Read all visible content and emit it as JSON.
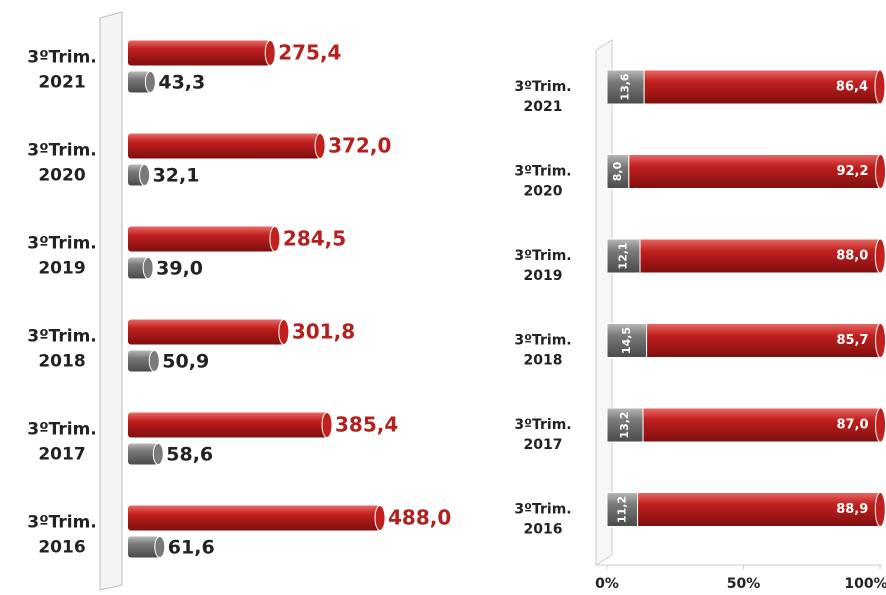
{
  "chart_data": [
    {
      "type": "cylinder-bar",
      "categories": [
        "3ºTrim.\n2021",
        "3ºTrim.\n2020",
        "3ºTrim.\n2019",
        "3ºTrim.\n2018",
        "3ºTrim.\n2017",
        "3ºTrim.\n2016"
      ],
      "series": [
        {
          "color": "#c0201e",
          "label_color": "#b3201d",
          "values": [
            275.4,
            372.0,
            284.5,
            301.8,
            385.4,
            488.0
          ],
          "value_labels": [
            "275,4",
            "372,0",
            "284,5",
            "301,8",
            "385,4",
            "488,0"
          ]
        },
        {
          "color": "#7a7a7a",
          "label_color": "#222222",
          "values": [
            43.3,
            32.1,
            39.0,
            50.9,
            58.6,
            61.6
          ],
          "value_labels": [
            "43,3",
            "32,1",
            "39,0",
            "50,9",
            "58,6",
            "61,6"
          ]
        }
      ]
    },
    {
      "type": "stacked-bar",
      "categories": [
        "3ºTrim.\n2021",
        "3ºTrim.\n2020",
        "3ºTrim.\n2019",
        "3ºTrim.\n2018",
        "3ºTrim.\n2017",
        "3ºTrim.\n2016"
      ],
      "series": [
        {
          "color": "#7a7a7a",
          "values": [
            13.6,
            8.0,
            12.1,
            14.5,
            13.2,
            11.2
          ],
          "value_labels": [
            "13,6",
            "8,0",
            "12,1",
            "14,5",
            "13,2",
            "11,2"
          ]
        },
        {
          "color": "#c0201e",
          "values": [
            86.4,
            92.2,
            88.0,
            85.7,
            87.0,
            88.9
          ],
          "value_labels": [
            "86,4",
            "92,2",
            "88,0",
            "85,7",
            "87,0",
            "88,9"
          ]
        }
      ],
      "xlim": [
        0,
        100
      ],
      "xticks": [
        {
          "value": 0,
          "label": "0%"
        },
        {
          "value": 50,
          "label": "50%"
        },
        {
          "value": 100,
          "label": "100%"
        }
      ]
    }
  ]
}
